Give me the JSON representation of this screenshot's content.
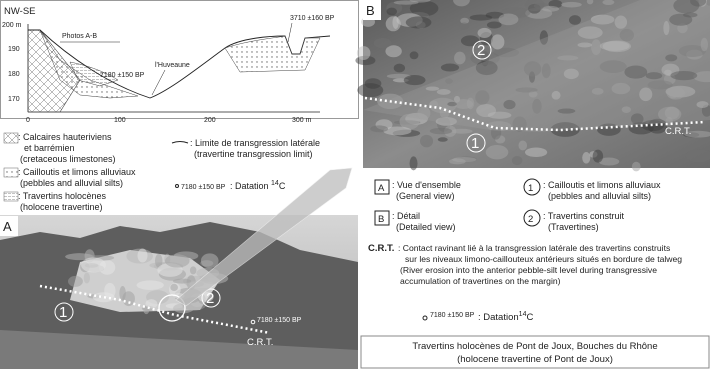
{
  "section": {
    "orientation": "NW-SE",
    "photos_label": "Photos A-B",
    "river_label": "l'Huveaune",
    "date_left": "7180 ±150 BP",
    "date_right": "3710 ±160 BP",
    "y_axis": [
      "200 m",
      "190",
      "180",
      "170"
    ],
    "x_axis": [
      "0",
      "100",
      "200",
      "300 m"
    ]
  },
  "left_legend": {
    "items": [
      {
        "lines": [
          ": Calcaires hauteriviens",
          "et barrémien",
          "(cretaceous limestones)"
        ]
      },
      {
        "lines": [
          ": Cailloutis et limons alluviaux",
          "(pebbles and alluvial silts)"
        ]
      },
      {
        "lines": [
          ": Travertins holocènes",
          "(holocene travertine)"
        ]
      },
      {
        "lines": [
          ": Limite de transgression latérale",
          "(travertine transgression limit)"
        ]
      }
    ],
    "dating": {
      "sample": "7180 ±150 BP",
      "label": ": Datation ",
      "superscript": "14",
      "tail": "C"
    }
  },
  "photo_b": {
    "panel": "B",
    "marker_2": "2",
    "marker_1": "1",
    "contact": "C.R.T."
  },
  "photo_a": {
    "panel": "A",
    "marker_1": "1",
    "marker_2": "2",
    "date": "7180 ±150 BP",
    "contact": "C.R.T."
  },
  "right_legend": {
    "a": {
      "key": "A",
      "lines": [
        ": Vue d'ensemble",
        "(General view)"
      ]
    },
    "b": {
      "key": "B",
      "lines": [
        ": Détail",
        "(Detailed view)"
      ]
    },
    "one": {
      "key": "1",
      "lines": [
        ": Cailloutis et limons alluviaux",
        "(pebbles and alluvial silts)"
      ]
    },
    "two": {
      "key": "2",
      "lines": [
        ": Travertins construit",
        "(Travertines)"
      ]
    },
    "crt": {
      "key": "C.R.T.",
      "lines": [
        ": Contact ravinant lié à la transgression latérale des travertins construits",
        "sur les niveaux limono-caillouteux antérieurs situés en bordure de talweg",
        "(River erosion into the anterior pebble-silt level during transgressive",
        "accumulation of travertines on the margin)"
      ]
    },
    "dating": {
      "sample": "7180 ±150 BP",
      "label": ": Datation",
      "superscript": "14",
      "tail": "C"
    }
  },
  "caption": {
    "lines": [
      "Travertins holocènes de Pont de Joux, Bouches du Rhône",
      "(holocene travertine of Pont de Joux)"
    ]
  }
}
